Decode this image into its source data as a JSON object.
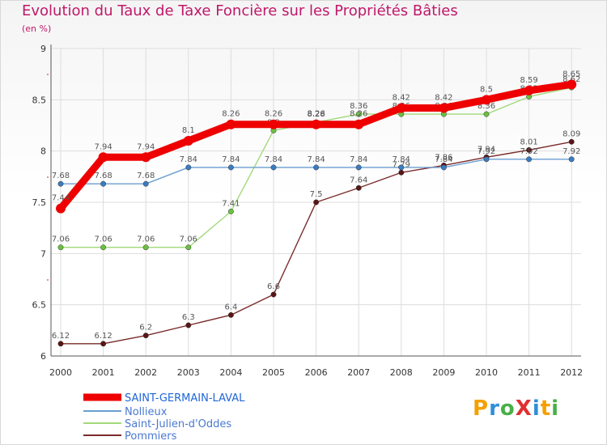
{
  "chart_data": {
    "type": "line",
    "title": "Evolution du Taux de Taxe Foncière sur les Propriétés Bâties",
    "ylabel": "(en %)",
    "xlabel": "",
    "x": [
      "2000",
      "2001",
      "2002",
      "2003",
      "2004",
      "2005",
      "2006",
      "2007",
      "2008",
      "2009",
      "2010",
      "2011",
      "2012"
    ],
    "ylim": [
      6,
      9
    ],
    "yticks": [
      "6",
      "6.5",
      "7",
      "7.5",
      "8",
      "8.5",
      "9"
    ],
    "yticks_values": [
      6,
      6.5,
      7,
      7.5,
      8,
      8.5,
      9
    ],
    "grid": true,
    "legend_position": "bottom-left",
    "series": [
      {
        "name": "SAINT-GERMAIN-LAVAL",
        "color": "#ee0000",
        "marker": "#ee0000",
        "values": [
          7.44,
          7.94,
          7.94,
          8.1,
          8.26,
          8.26,
          8.26,
          8.26,
          8.42,
          8.42,
          8.5,
          8.59,
          8.65
        ],
        "labels": [
          "7.44",
          "7.94",
          "7.94",
          "8.1",
          "8.26",
          "8.26",
          "8.26",
          "8.26",
          "8.42",
          "8.42",
          "8.5",
          "8.59",
          "8.65"
        ]
      },
      {
        "name": "Nollieux",
        "color": "#6a9ed2",
        "marker": "#3a7cc0",
        "values": [
          7.68,
          7.68,
          7.68,
          7.84,
          7.84,
          7.84,
          7.84,
          7.84,
          7.84,
          7.84,
          7.92,
          7.92,
          7.92
        ],
        "labels": [
          "7.68",
          "7.68",
          "7.68",
          "7.84",
          "7.84",
          "7.84",
          "7.84",
          "7.84",
          "7.84",
          "7.84",
          "7.92",
          "7.92",
          "7.92"
        ]
      },
      {
        "name": "Saint-Julien-d'Oddes",
        "color": "#a2d97a",
        "marker": "#6cc040",
        "values": [
          7.06,
          7.06,
          7.06,
          7.06,
          7.41,
          8.2,
          8.28,
          8.36,
          8.36,
          8.36,
          8.36,
          8.53,
          8.62
        ],
        "labels": [
          "7.06",
          "7.06",
          "7.06",
          "7.06",
          "7.41",
          "8.2",
          "8.28",
          "8.36",
          "8.36",
          "8.36",
          "8.36",
          "8.53",
          "8.62"
        ]
      },
      {
        "name": "Pommiers",
        "color": "#7a2a2a",
        "marker": "#5a1515",
        "values": [
          6.12,
          6.12,
          6.2,
          6.3,
          6.4,
          6.6,
          7.5,
          7.64,
          7.79,
          7.86,
          7.94,
          8.01,
          8.09
        ],
        "labels": [
          "6.12",
          "6.12",
          "6.2",
          "6.3",
          "6.4",
          "6.6",
          "7.5",
          "7.64",
          "7.79",
          "7.86",
          "7.94",
          "8.01",
          "8.09"
        ]
      }
    ]
  },
  "logo": {
    "text": "ProXiti"
  }
}
